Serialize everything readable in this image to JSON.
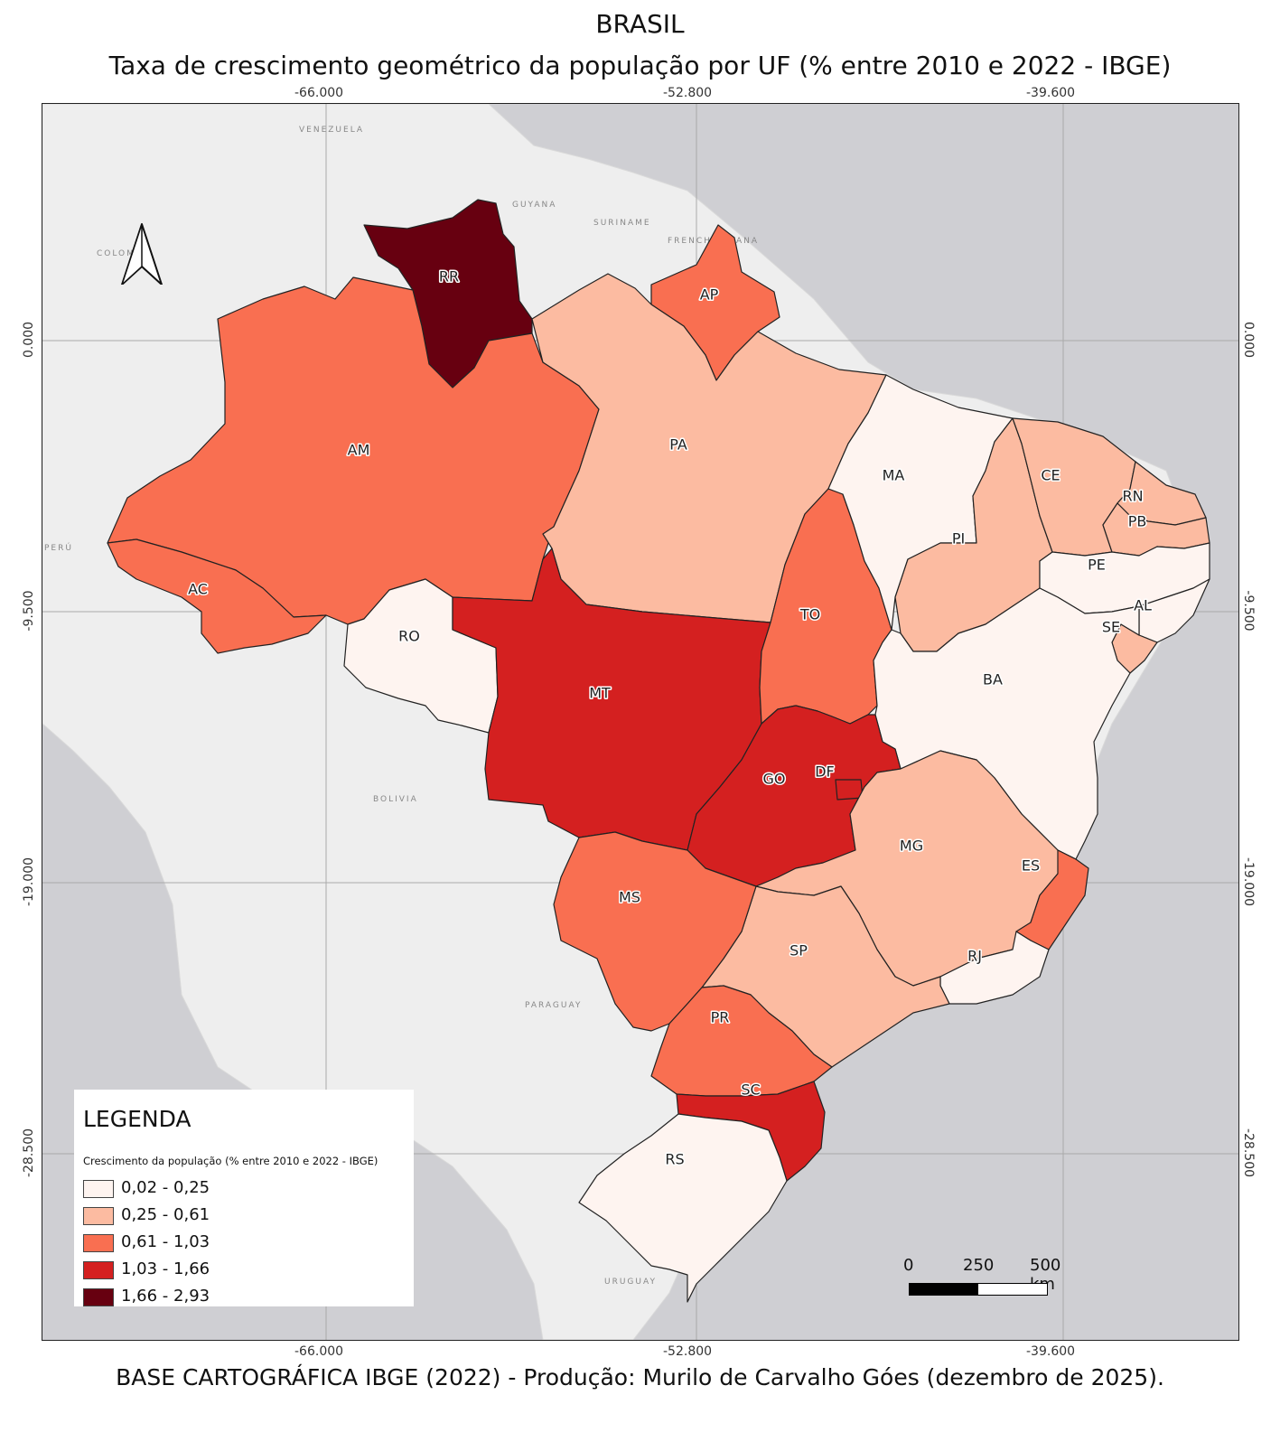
{
  "title": "BRASIL",
  "subtitle": "Taxa de crescimento geométrico da população por UF (% entre 2010 e 2022 - IBGE)",
  "footer": "BASE CARTOGRÁFICA IBGE (2022) - Produção: Murilo de Carvalho Góes (dezembro de 2025).",
  "grid_labels": {
    "lon": [
      "-66.000",
      "-52.800",
      "-39.600"
    ],
    "lat": [
      "0.000",
      "-9.500",
      "-19.000",
      "-28.500"
    ]
  },
  "countries": [
    "VENEZUELA",
    "GUYANA",
    "SURINAME",
    "FRENCH GUIANA",
    "COLOMBIA",
    "PERÚ",
    "BOLIVIA",
    "PARAGUAY",
    "URUGUAY"
  ],
  "legend": {
    "title": "LEGENDA",
    "subtitle": "Crescimento da população (% entre 2010 e 2022 - IBGE)",
    "classes": [
      {
        "label": "0,02 - 0,25",
        "color": "#fef4f0"
      },
      {
        "label": "0,25 - 0,61",
        "color": "#fcbba1"
      },
      {
        "label": "0,61 - 1,03",
        "color": "#f96f51"
      },
      {
        "label": "1,03 - 1,66",
        "color": "#d42020"
      },
      {
        "label": "1,66 - 2,93",
        "color": "#670010"
      }
    ]
  },
  "scale": {
    "labels": [
      "0",
      "250",
      "500 km"
    ]
  },
  "states": [
    {
      "uf": "RR",
      "class": 4
    },
    {
      "uf": "AP",
      "class": 2
    },
    {
      "uf": "AM",
      "class": 2
    },
    {
      "uf": "PA",
      "class": 1
    },
    {
      "uf": "AC",
      "class": 2
    },
    {
      "uf": "RO",
      "class": 0
    },
    {
      "uf": "MT",
      "class": 3
    },
    {
      "uf": "TO",
      "class": 2
    },
    {
      "uf": "MA",
      "class": 0
    },
    {
      "uf": "PI",
      "class": 1
    },
    {
      "uf": "CE",
      "class": 1
    },
    {
      "uf": "RN",
      "class": 1
    },
    {
      "uf": "PB",
      "class": 1
    },
    {
      "uf": "PE",
      "class": 0
    },
    {
      "uf": "AL",
      "class": 0
    },
    {
      "uf": "SE",
      "class": 1
    },
    {
      "uf": "BA",
      "class": 0
    },
    {
      "uf": "GO",
      "class": 3
    },
    {
      "uf": "DF",
      "class": 3
    },
    {
      "uf": "MG",
      "class": 1
    },
    {
      "uf": "ES",
      "class": 2
    },
    {
      "uf": "RJ",
      "class": 0
    },
    {
      "uf": "SP",
      "class": 1
    },
    {
      "uf": "MS",
      "class": 2
    },
    {
      "uf": "PR",
      "class": 2
    },
    {
      "uf": "SC",
      "class": 3
    },
    {
      "uf": "RS",
      "class": 0
    }
  ]
}
